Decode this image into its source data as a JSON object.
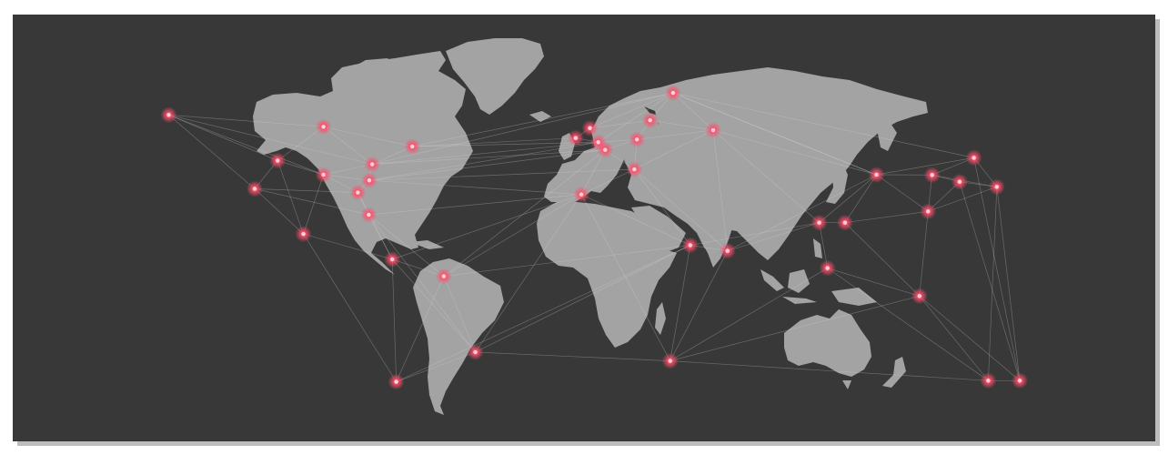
{
  "map": {
    "type": "world-connection-map",
    "colors": {
      "background": "#383838",
      "land": "#a3a3a3",
      "node": "#ff4d6a",
      "connection": "#d8d8d8"
    },
    "node_icon": "glowing-dot",
    "nodes": [
      {
        "id": "anchorage",
        "lon": -150,
        "lat": 61.2
      },
      {
        "id": "hudson-bay",
        "lon": -96,
        "lat": 57
      },
      {
        "id": "newfoundland",
        "lon": -65,
        "lat": 50
      },
      {
        "id": "rockies",
        "lon": -112,
        "lat": 45
      },
      {
        "id": "great-plains",
        "lon": -96,
        "lat": 40
      },
      {
        "id": "toronto",
        "lon": -79,
        "lat": 43.7
      },
      {
        "id": "east-coast",
        "lon": -80,
        "lat": 38
      },
      {
        "id": "atlanta",
        "lon": -84,
        "lat": 33.7
      },
      {
        "id": "california",
        "lon": -120,
        "lat": 35
      },
      {
        "id": "florida",
        "lon": -80.2,
        "lat": 25.8
      },
      {
        "id": "mexico",
        "lon": -103,
        "lat": 19
      },
      {
        "id": "caracas",
        "lon": -72,
        "lat": 10
      },
      {
        "id": "guiana",
        "lon": -54,
        "lat": 4
      },
      {
        "id": "rio",
        "lon": -43,
        "lat": -22.9
      },
      {
        "id": "santiago",
        "lon": -70.6,
        "lat": -33.4
      },
      {
        "id": "ireland",
        "lon": -8,
        "lat": 53
      },
      {
        "id": "scotland",
        "lon": -3,
        "lat": 56.5
      },
      {
        "id": "london",
        "lon": -0.1,
        "lat": 51.5
      },
      {
        "id": "paris",
        "lon": 2.3,
        "lat": 48.8
      },
      {
        "id": "iberia",
        "lon": -6,
        "lat": 33
      },
      {
        "id": "rome",
        "lon": 12.5,
        "lat": 41.9
      },
      {
        "id": "berlin",
        "lon": 13.4,
        "lat": 52.5
      },
      {
        "id": "stockholm",
        "lon": 18,
        "lat": 59.3
      },
      {
        "id": "lapland",
        "lon": 26,
        "lat": 69
      },
      {
        "id": "moscow",
        "lon": 40,
        "lat": 55.8
      },
      {
        "id": "sahel",
        "lon": 32,
        "lat": 15
      },
      {
        "id": "arabia",
        "lon": 45,
        "lat": 13
      },
      {
        "id": "cape-town",
        "lon": 25,
        "lat": -26
      },
      {
        "id": "central-india",
        "lon": 77,
        "lat": 23
      },
      {
        "id": "east-india",
        "lon": 86,
        "lat": 23
      },
      {
        "id": "sri-lanka",
        "lon": 79.9,
        "lat": 6.9
      },
      {
        "id": "central-asia",
        "lon": 97,
        "lat": 40
      },
      {
        "id": "china-south",
        "lon": 115,
        "lat": 27
      },
      {
        "id": "beijing",
        "lon": 116.4,
        "lat": 39.9
      },
      {
        "id": "korea",
        "lon": 126,
        "lat": 37.5
      },
      {
        "id": "japan",
        "lon": 139,
        "lat": 35.7
      },
      {
        "id": "manchuria",
        "lon": 131,
        "lat": 46
      },
      {
        "id": "indonesia",
        "lon": 112,
        "lat": -3
      },
      {
        "id": "adelaide",
        "lon": 136,
        "lat": -33
      },
      {
        "id": "sydney",
        "lon": 147,
        "lat": -33
      }
    ],
    "connections": [
      [
        "anchorage",
        "hudson-bay"
      ],
      [
        "anchorage",
        "rockies"
      ],
      [
        "anchorage",
        "california"
      ],
      [
        "anchorage",
        "great-plains"
      ],
      [
        "anchorage",
        "toronto"
      ],
      [
        "hudson-bay",
        "toronto"
      ],
      [
        "hudson-bay",
        "newfoundland"
      ],
      [
        "hudson-bay",
        "rockies"
      ],
      [
        "newfoundland",
        "toronto"
      ],
      [
        "newfoundland",
        "ireland"
      ],
      [
        "newfoundland",
        "london"
      ],
      [
        "newfoundland",
        "lapland"
      ],
      [
        "rockies",
        "california"
      ],
      [
        "rockies",
        "great-plains"
      ],
      [
        "rockies",
        "mexico"
      ],
      [
        "great-plains",
        "toronto"
      ],
      [
        "great-plains",
        "atlanta"
      ],
      [
        "great-plains",
        "mexico"
      ],
      [
        "great-plains",
        "east-coast"
      ],
      [
        "toronto",
        "east-coast"
      ],
      [
        "toronto",
        "london"
      ],
      [
        "toronto",
        "lapland"
      ],
      [
        "toronto",
        "paris"
      ],
      [
        "east-coast",
        "atlanta"
      ],
      [
        "east-coast",
        "paris"
      ],
      [
        "east-coast",
        "iberia"
      ],
      [
        "east-coast",
        "london"
      ],
      [
        "east-coast",
        "rome"
      ],
      [
        "atlanta",
        "florida"
      ],
      [
        "atlanta",
        "california"
      ],
      [
        "atlanta",
        "caracas"
      ],
      [
        "california",
        "mexico"
      ],
      [
        "california",
        "florida"
      ],
      [
        "florida",
        "caracas"
      ],
      [
        "florida",
        "iberia"
      ],
      [
        "florida",
        "guiana"
      ],
      [
        "florida",
        "rio"
      ],
      [
        "mexico",
        "caracas"
      ],
      [
        "mexico",
        "santiago"
      ],
      [
        "caracas",
        "guiana"
      ],
      [
        "caracas",
        "rio"
      ],
      [
        "caracas",
        "santiago"
      ],
      [
        "caracas",
        "iberia"
      ],
      [
        "guiana",
        "rio"
      ],
      [
        "guiana",
        "iberia"
      ],
      [
        "guiana",
        "sahel"
      ],
      [
        "guiana",
        "paris"
      ],
      [
        "rio",
        "santiago"
      ],
      [
        "rio",
        "iberia"
      ],
      [
        "rio",
        "cape-town"
      ],
      [
        "rio",
        "sahel"
      ],
      [
        "santiago",
        "guiana"
      ],
      [
        "santiago",
        "sahel"
      ],
      [
        "ireland",
        "scotland"
      ],
      [
        "ireland",
        "london"
      ],
      [
        "scotland",
        "stockholm"
      ],
      [
        "scotland",
        "lapland"
      ],
      [
        "london",
        "paris"
      ],
      [
        "london",
        "berlin"
      ],
      [
        "london",
        "lapland"
      ],
      [
        "paris",
        "berlin"
      ],
      [
        "paris",
        "rome"
      ],
      [
        "paris",
        "iberia"
      ],
      [
        "iberia",
        "rome"
      ],
      [
        "iberia",
        "sahel"
      ],
      [
        "iberia",
        "cape-town"
      ],
      [
        "rome",
        "berlin"
      ],
      [
        "rome",
        "sahel"
      ],
      [
        "rome",
        "moscow"
      ],
      [
        "rome",
        "arabia"
      ],
      [
        "berlin",
        "stockholm"
      ],
      [
        "berlin",
        "moscow"
      ],
      [
        "stockholm",
        "lapland"
      ],
      [
        "stockholm",
        "moscow"
      ],
      [
        "lapland",
        "moscow"
      ],
      [
        "lapland",
        "central-asia"
      ],
      [
        "moscow",
        "central-asia"
      ],
      [
        "moscow",
        "arabia"
      ],
      [
        "moscow",
        "central-india"
      ],
      [
        "sahel",
        "arabia"
      ],
      [
        "sahel",
        "cape-town"
      ],
      [
        "sahel",
        "central-india"
      ],
      [
        "arabia",
        "cape-town"
      ],
      [
        "arabia",
        "central-india"
      ],
      [
        "arabia",
        "central-asia"
      ],
      [
        "cape-town",
        "sri-lanka"
      ],
      [
        "cape-town",
        "indonesia"
      ],
      [
        "cape-town",
        "adelaide"
      ],
      [
        "central-india",
        "east-india"
      ],
      [
        "central-india",
        "sri-lanka"
      ],
      [
        "central-india",
        "central-asia"
      ],
      [
        "east-india",
        "central-asia"
      ],
      [
        "east-india",
        "china-south"
      ],
      [
        "east-india",
        "indonesia"
      ],
      [
        "sri-lanka",
        "indonesia"
      ],
      [
        "sri-lanka",
        "adelaide"
      ],
      [
        "central-asia",
        "beijing"
      ],
      [
        "central-asia",
        "china-south"
      ],
      [
        "central-asia",
        "manchuria"
      ],
      [
        "central-asia",
        "lapland"
      ],
      [
        "china-south",
        "beijing"
      ],
      [
        "china-south",
        "korea"
      ],
      [
        "china-south",
        "indonesia"
      ],
      [
        "china-south",
        "japan"
      ],
      [
        "beijing",
        "korea"
      ],
      [
        "beijing",
        "manchuria"
      ],
      [
        "beijing",
        "japan"
      ],
      [
        "korea",
        "japan"
      ],
      [
        "manchuria",
        "japan"
      ],
      [
        "manchuria",
        "lapland"
      ],
      [
        "indonesia",
        "adelaide"
      ],
      [
        "indonesia",
        "sydney"
      ],
      [
        "adelaide",
        "sydney"
      ],
      [
        "japan",
        "sydney"
      ],
      [
        "japan",
        "adelaide"
      ],
      [
        "korea",
        "sydney"
      ],
      [
        "manchuria",
        "sydney"
      ]
    ]
  }
}
